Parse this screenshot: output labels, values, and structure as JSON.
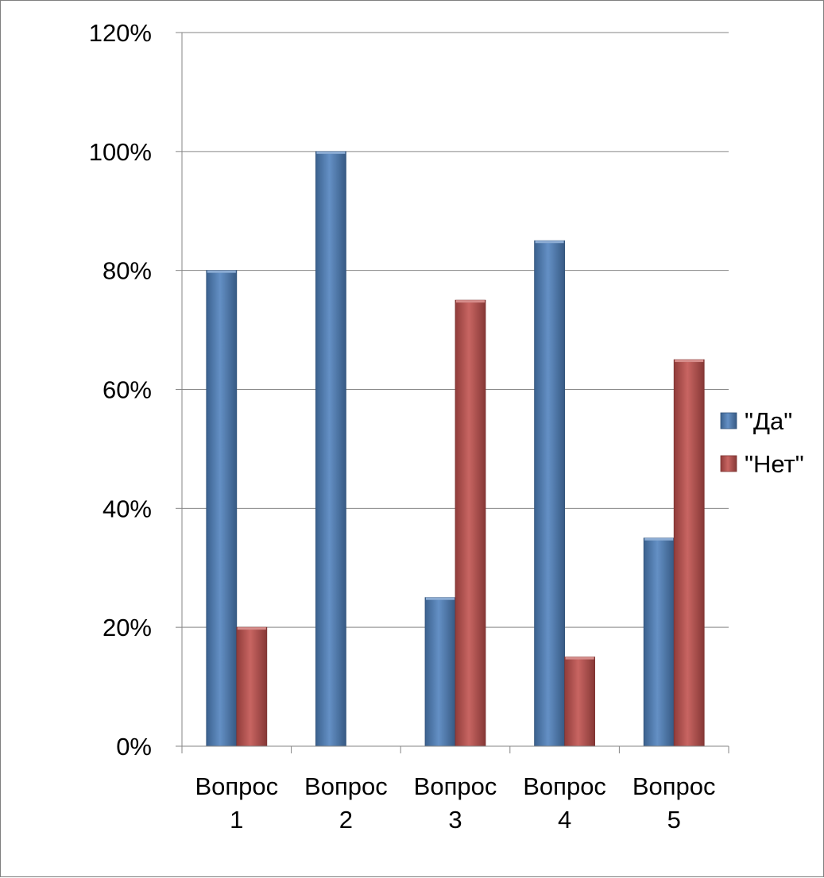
{
  "chart_data": {
    "type": "bar",
    "title": "",
    "xlabel": "",
    "ylabel": "",
    "categories": [
      [
        "Вопрос",
        "1"
      ],
      [
        "Вопрос",
        "2"
      ],
      [
        "Вопрос",
        "3"
      ],
      [
        "Вопрос",
        "4"
      ],
      [
        "Вопрос",
        "5"
      ]
    ],
    "series": [
      {
        "name": "\"Да\"",
        "values": [
          0.8,
          1.0,
          0.25,
          0.85,
          0.35
        ],
        "color": "#4f81bd"
      },
      {
        "name": "\"Нет\"",
        "values": [
          0.2,
          0.0,
          0.75,
          0.15,
          0.65
        ],
        "color": "#c0504d"
      }
    ],
    "ylim": [
      0,
      1.2
    ],
    "yticks": [
      "0%",
      "20%",
      "40%",
      "60%",
      "80%",
      "100%",
      "120%"
    ],
    "grid": true,
    "legend_position": "right"
  }
}
